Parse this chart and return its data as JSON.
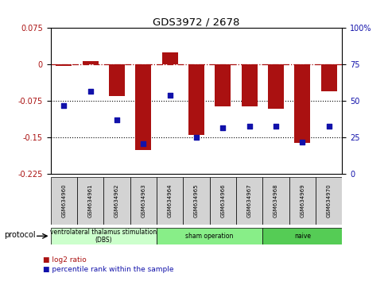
{
  "title": "GDS3972 / 2678",
  "samples": [
    "GSM634960",
    "GSM634961",
    "GSM634962",
    "GSM634963",
    "GSM634964",
    "GSM634965",
    "GSM634966",
    "GSM634967",
    "GSM634968",
    "GSM634969",
    "GSM634970"
  ],
  "log2_ratio": [
    -0.003,
    0.007,
    -0.065,
    -0.175,
    0.025,
    -0.145,
    -0.085,
    -0.085,
    -0.09,
    -0.16,
    -0.055
  ],
  "percentile_rank": [
    47,
    57,
    37,
    21,
    54,
    25,
    32,
    33,
    33,
    22,
    33
  ],
  "bar_color": "#aa1111",
  "dot_color": "#1111aa",
  "ylim_left": [
    -0.225,
    0.075
  ],
  "ylim_right": [
    0,
    100
  ],
  "yticks_left": [
    0.075,
    0,
    -0.075,
    -0.15,
    -0.225
  ],
  "yticks_right": [
    100,
    75,
    50,
    25,
    0
  ],
  "dotted_lines": [
    -0.075,
    -0.15
  ],
  "groups": [
    {
      "label": "ventrolateral thalamus stimulation\n(DBS)",
      "start": 0,
      "end": 3,
      "color": "#ccffcc"
    },
    {
      "label": "sham operation",
      "start": 4,
      "end": 7,
      "color": "#88ee88"
    },
    {
      "label": "naive",
      "start": 8,
      "end": 10,
      "color": "#55cc55"
    }
  ],
  "legend_red_label": "log2 ratio",
  "legend_blue_label": "percentile rank within the sample",
  "protocol_label": "protocol"
}
